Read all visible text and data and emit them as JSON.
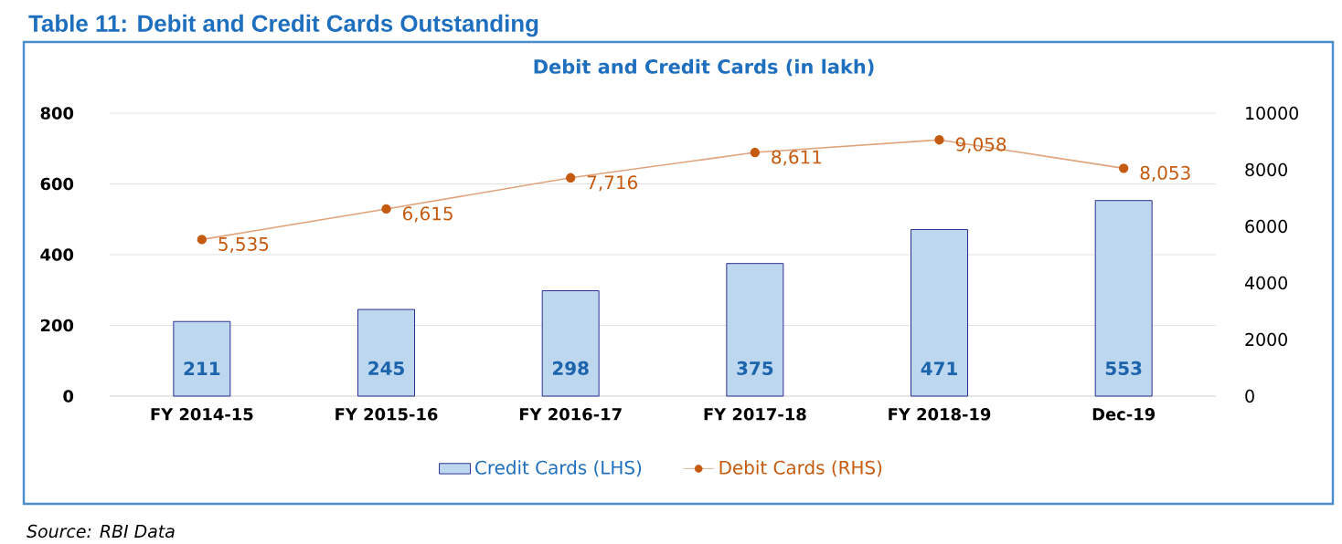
{
  "chart_data": {
    "type": "bar",
    "title": "Table 11: Debit and Credit Cards Outstanding",
    "subtitle": "Debit and Credit Cards (in lakh)",
    "categories": [
      "FY 2014-15",
      "FY 2015-16",
      "FY 2016-17",
      "FY 2017-18",
      "FY 2018-19",
      "Dec-19"
    ],
    "series": [
      {
        "name": "Credit Cards (LHS)",
        "color": "#bdd7ee",
        "values": [
          211,
          245,
          298,
          375,
          471,
          553
        ],
        "value_labels": [
          "211",
          "245",
          "298",
          "375",
          "471",
          "553"
        ]
      },
      {
        "name": "Debit Cards (RHS)",
        "type": "line",
        "axis": "y2",
        "color": "#c55a11",
        "values": [
          5535,
          6615,
          7716,
          8611,
          9058,
          8053
        ],
        "value_labels": [
          "5,535",
          "6,615",
          "7,716",
          "8,611",
          "9,058",
          "8,053"
        ]
      }
    ],
    "ylim": [
      0,
      800
    ],
    "yticks": [
      0,
      200,
      400,
      600,
      800
    ],
    "y2lim": [
      0,
      10000
    ],
    "y2ticks": [
      0,
      2000,
      4000,
      6000,
      8000,
      10000
    ],
    "grid": "y",
    "legend": "bottom",
    "marker": "circle",
    "annotations": [
      "Source: RBI Data"
    ]
  }
}
